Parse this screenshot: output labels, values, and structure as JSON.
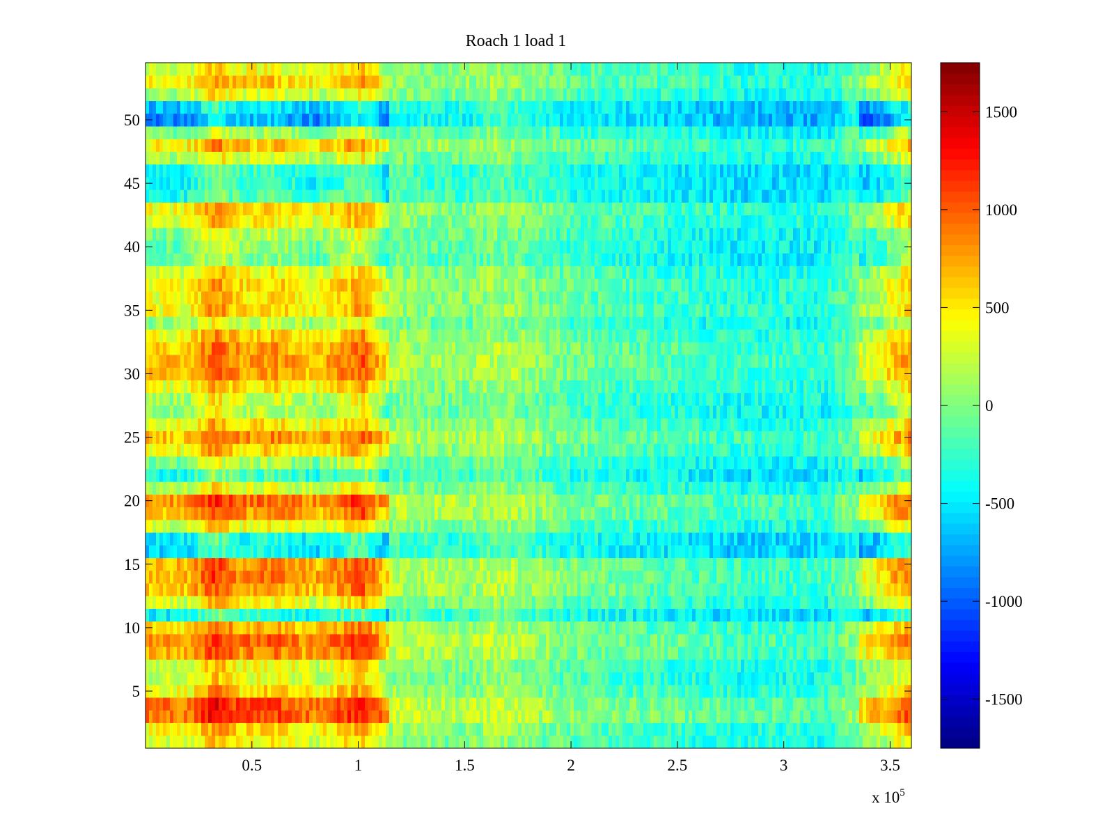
{
  "chart_data": {
    "type": "heatmap",
    "title": "Roach 1 load 1",
    "xlabel": "",
    "ylabel": "",
    "x_exponent_base": "x 10",
    "x_exponent_power": "5",
    "xlim": [
      0,
      360000
    ],
    "ylim": [
      0.5,
      54.5
    ],
    "rows": 54,
    "x_ticks": [
      {
        "value": 0.5,
        "label": "0.5"
      },
      {
        "value": 1,
        "label": "1"
      },
      {
        "value": 1.5,
        "label": "1.5"
      },
      {
        "value": 2,
        "label": "2"
      },
      {
        "value": 2.5,
        "label": "2.5"
      },
      {
        "value": 3,
        "label": "3"
      },
      {
        "value": 3.5,
        "label": "3.5"
      }
    ],
    "y_ticks": [
      {
        "value": 5,
        "label": "5"
      },
      {
        "value": 10,
        "label": "10"
      },
      {
        "value": 15,
        "label": "15"
      },
      {
        "value": 20,
        "label": "20"
      },
      {
        "value": 25,
        "label": "25"
      },
      {
        "value": 30,
        "label": "30"
      },
      {
        "value": 35,
        "label": "35"
      },
      {
        "value": 40,
        "label": "40"
      },
      {
        "value": 45,
        "label": "45"
      },
      {
        "value": 50,
        "label": "50"
      }
    ],
    "colorbar": {
      "colormap": "jet",
      "range": [
        -1750,
        1750
      ],
      "ticks": [
        {
          "value": -1500,
          "label": "-1500"
        },
        {
          "value": -1000,
          "label": "-1000"
        },
        {
          "value": -500,
          "label": "-500"
        },
        {
          "value": 0,
          "label": "0"
        },
        {
          "value": 500,
          "label": "500"
        },
        {
          "value": 1000,
          "label": "1000"
        },
        {
          "value": 1500,
          "label": "1500"
        }
      ]
    },
    "column_profile": [
      {
        "x": 0,
        "v": 250
      },
      {
        "x": 20000,
        "v": 250
      },
      {
        "x": 33000,
        "v": 700
      },
      {
        "x": 45000,
        "v": 380
      },
      {
        "x": 60000,
        "v": 450
      },
      {
        "x": 80000,
        "v": 250
      },
      {
        "x": 103000,
        "v": 650
      },
      {
        "x": 115000,
        "v": 40
      },
      {
        "x": 150000,
        "v": -40
      },
      {
        "x": 165000,
        "v": 80
      },
      {
        "x": 200000,
        "v": -150
      },
      {
        "x": 280000,
        "v": -350
      },
      {
        "x": 320000,
        "v": -350
      },
      {
        "x": 345000,
        "v": 100
      },
      {
        "x": 360000,
        "v": 500
      }
    ],
    "row_offsets": [
      {
        "row": 1,
        "v": 0
      },
      {
        "row": 2,
        "v": 150
      },
      {
        "row": 3,
        "v": 650
      },
      {
        "row": 4,
        "v": 650
      },
      {
        "row": 5,
        "v": 150
      },
      {
        "row": 6,
        "v": -50
      },
      {
        "row": 7,
        "v": 0
      },
      {
        "row": 8,
        "v": 450
      },
      {
        "row": 9,
        "v": 550
      },
      {
        "row": 10,
        "v": 300
      },
      {
        "row": 11,
        "v": -700
      },
      {
        "row": 12,
        "v": 0
      },
      {
        "row": 13,
        "v": 350
      },
      {
        "row": 14,
        "v": 450
      },
      {
        "row": 15,
        "v": 400
      },
      {
        "row": 16,
        "v": -800
      },
      {
        "row": 17,
        "v": -750
      },
      {
        "row": 18,
        "v": 0
      },
      {
        "row": 19,
        "v": 400
      },
      {
        "row": 20,
        "v": 550
      },
      {
        "row": 21,
        "v": -100
      },
      {
        "row": 22,
        "v": -600
      },
      {
        "row": 23,
        "v": -300
      },
      {
        "row": 24,
        "v": 150
      },
      {
        "row": 25,
        "v": 400
      },
      {
        "row": 26,
        "v": 100
      },
      {
        "row": 27,
        "v": -250
      },
      {
        "row": 28,
        "v": -150
      },
      {
        "row": 29,
        "v": 100
      },
      {
        "row": 30,
        "v": 350
      },
      {
        "row": 31,
        "v": 400
      },
      {
        "row": 32,
        "v": 350
      },
      {
        "row": 33,
        "v": 150
      },
      {
        "row": 34,
        "v": -200
      },
      {
        "row": 35,
        "v": 150
      },
      {
        "row": 36,
        "v": 100
      },
      {
        "row": 37,
        "v": 150
      },
      {
        "row": 38,
        "v": 0
      },
      {
        "row": 39,
        "v": -400
      },
      {
        "row": 40,
        "v": -350
      },
      {
        "row": 41,
        "v": -250
      },
      {
        "row": 42,
        "v": 50
      },
      {
        "row": 43,
        "v": 150
      },
      {
        "row": 44,
        "v": -600
      },
      {
        "row": 45,
        "v": -700
      },
      {
        "row": 46,
        "v": -650
      },
      {
        "row": 47,
        "v": -150
      },
      {
        "row": 48,
        "v": 200
      },
      {
        "row": 49,
        "v": -300
      },
      {
        "row": 50,
        "v": -1100
      },
      {
        "row": 51,
        "v": -900
      },
      {
        "row": 52,
        "v": -100
      },
      {
        "row": 53,
        "v": 200
      },
      {
        "row": 54,
        "v": 0
      }
    ]
  }
}
